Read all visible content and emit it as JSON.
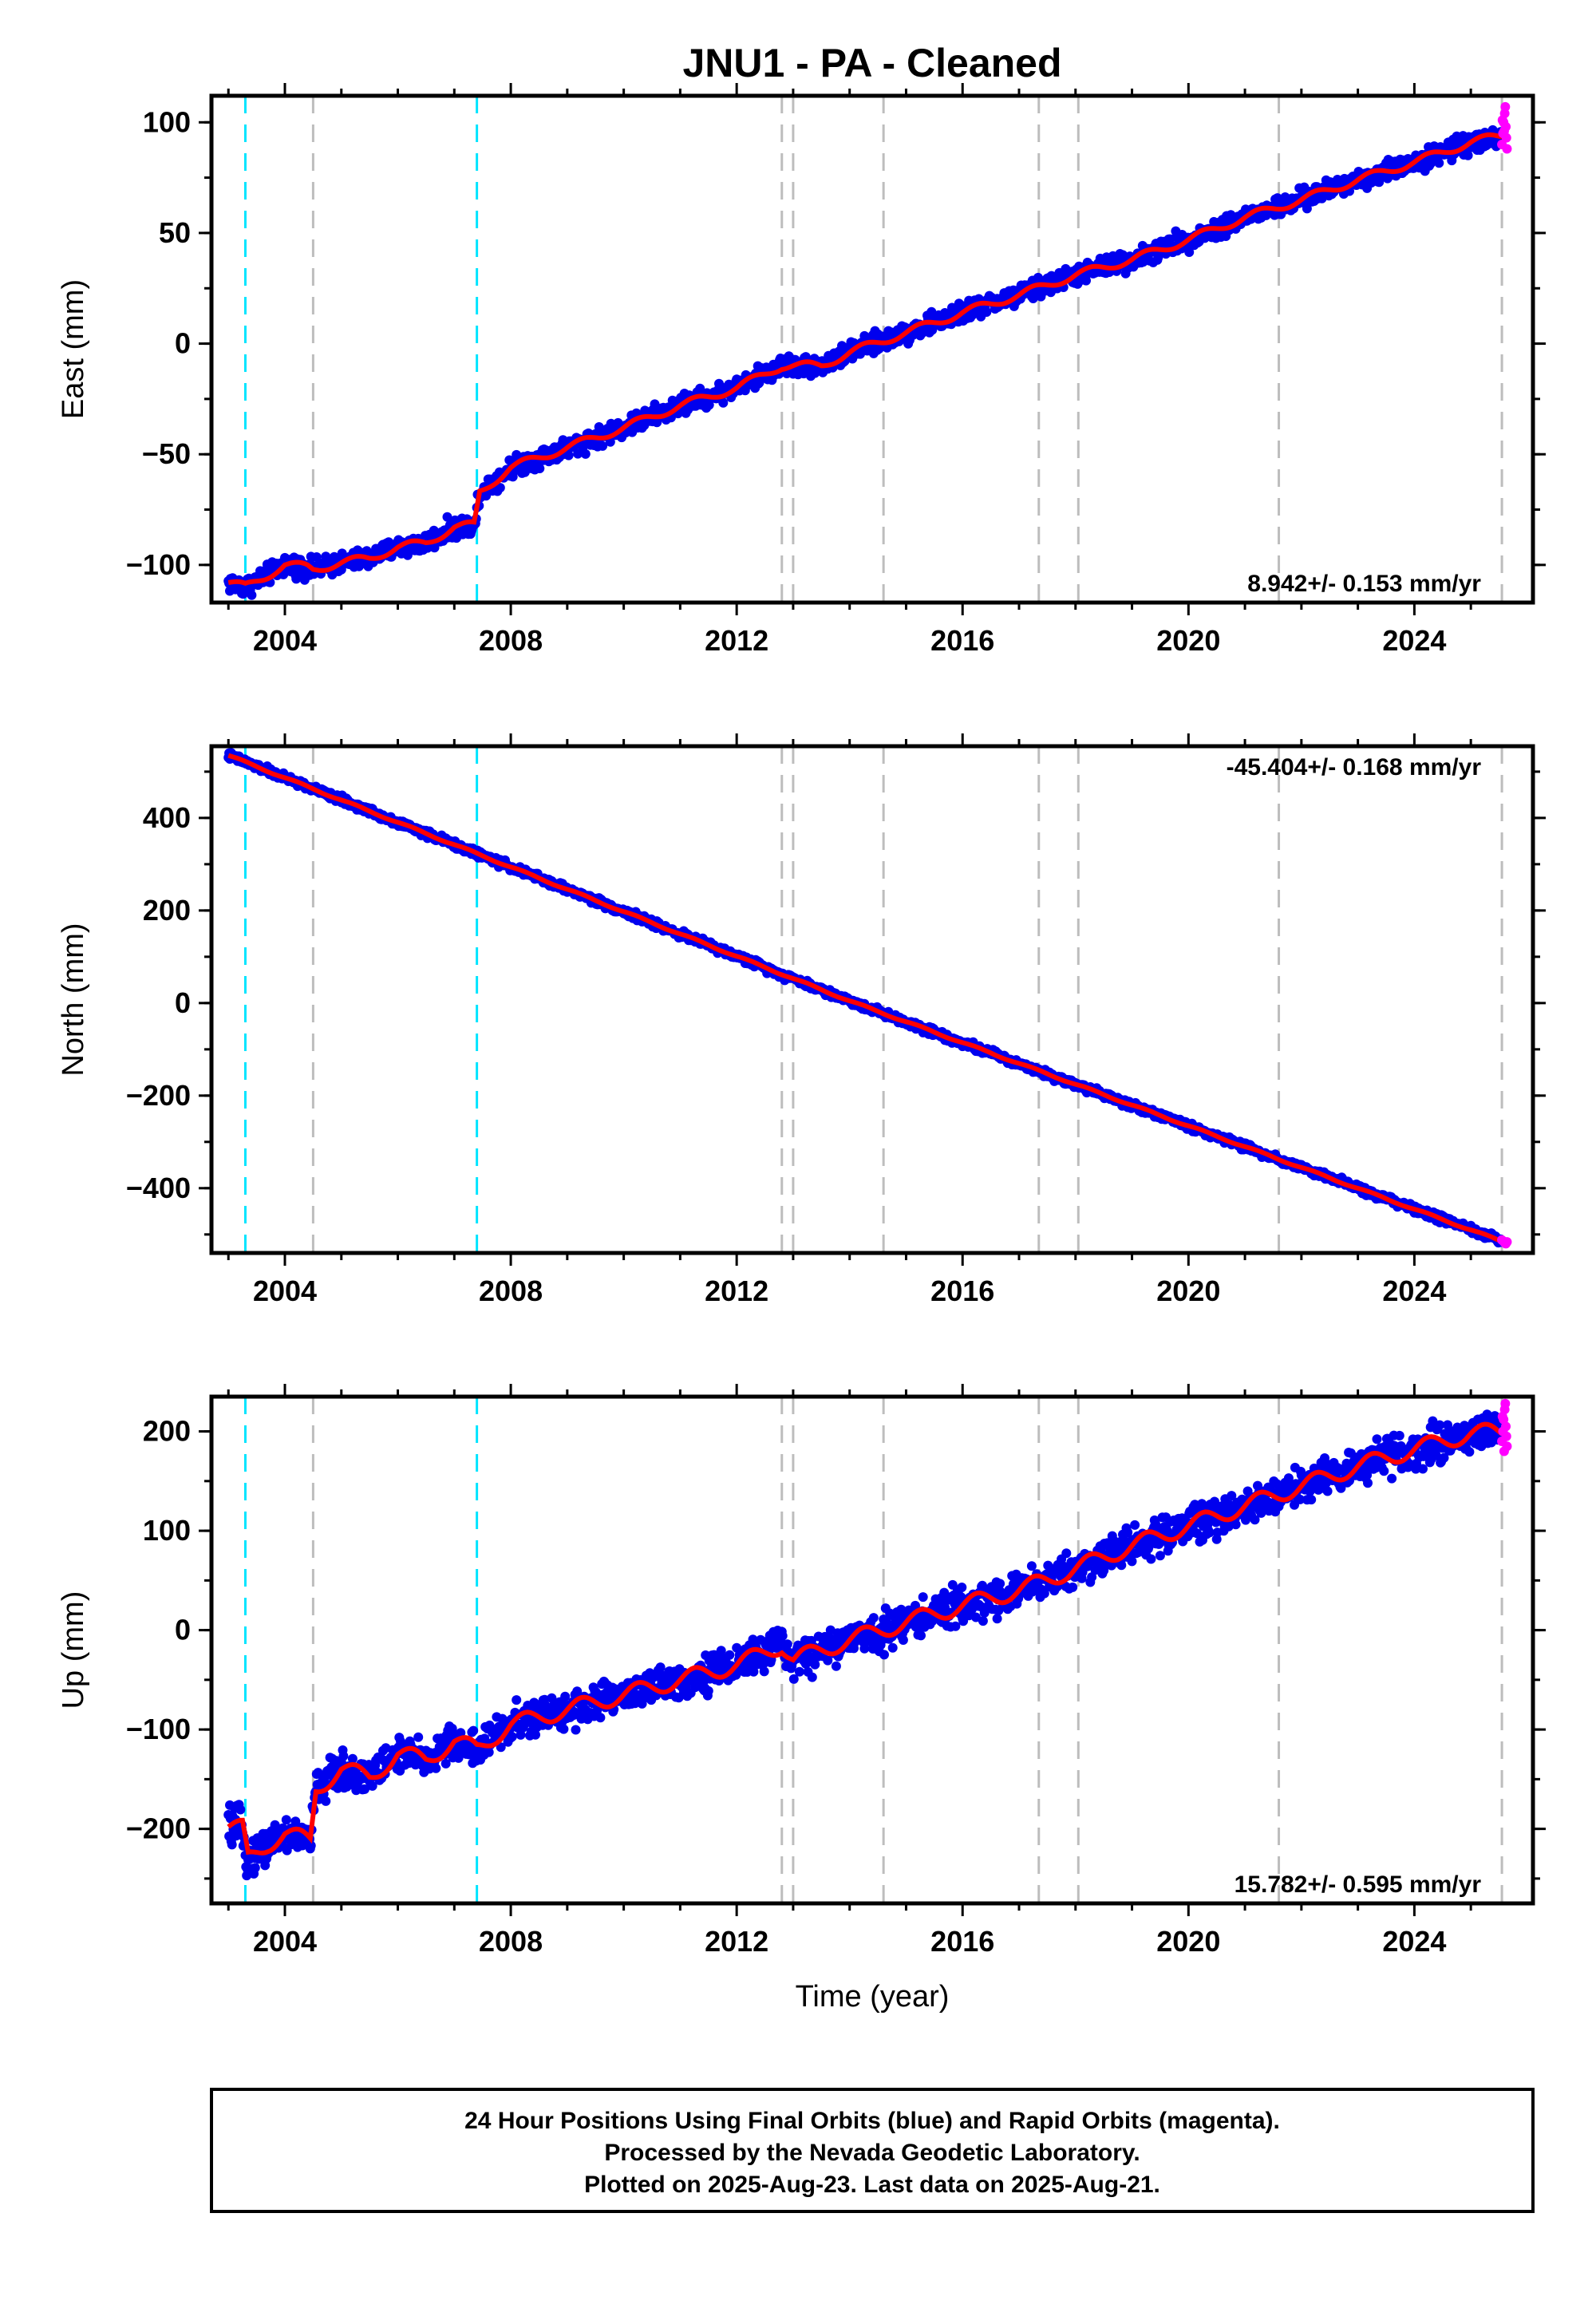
{
  "title": "JNU1  - PA - Cleaned",
  "colors": {
    "final_orbits": "#0000ee",
    "rapid_orbits": "#ff00ff",
    "model": "#ff0000",
    "equipment_change": "#00e5ff",
    "event": "#bdbdbd",
    "axes": "#000000"
  },
  "chart_data": [
    {
      "type": "scatter",
      "component": "East",
      "ylabel": "East (mm)",
      "xlim": [
        2002.7,
        2026.1
      ],
      "ylim": [
        -117,
        112
      ],
      "yticks": [
        -100,
        -50,
        0,
        50,
        100
      ],
      "yticklabels": [
        "−100",
        "−50",
        "0",
        "50",
        "100"
      ],
      "xticks": [
        2004,
        2008,
        2012,
        2016,
        2020,
        2024
      ],
      "xticklabels": [
        "2004",
        "2008",
        "2012",
        "2016",
        "2020",
        "2024"
      ],
      "rate": "8.942+/- 0.153 mm/yr",
      "rate_position": "bottom-right",
      "trend": {
        "rate": 8.942,
        "annual_amplitude": 3,
        "noise": 2.2,
        "steps": [
          {
            "t": 2007.4,
            "dy": 12
          }
        ]
      },
      "model_points": [
        [
          2003.0,
          -108
        ],
        [
          2003.3,
          -110
        ],
        [
          2003.6,
          -106
        ],
        [
          2004.0,
          -100
        ],
        [
          2004.4,
          -101
        ],
        [
          2004.5,
          -102
        ],
        [
          2005.0,
          -99
        ],
        [
          2005.5,
          -97
        ],
        [
          2006.0,
          -92
        ],
        [
          2006.5,
          -90
        ],
        [
          2007.0,
          -83
        ],
        [
          2007.39,
          -82
        ],
        [
          2007.41,
          -68
        ],
        [
          2008.0,
          -56
        ],
        [
          2009.0,
          -47
        ],
        [
          2010.0,
          -38
        ],
        [
          2011.0,
          -28
        ],
        [
          2012.0,
          -20
        ],
        [
          2012.8,
          -10
        ],
        [
          2013.5,
          -10
        ],
        [
          2014.0,
          -4
        ],
        [
          2015.0,
          5
        ],
        [
          2016.0,
          14
        ],
        [
          2017.0,
          22
        ],
        [
          2018.0,
          31
        ],
        [
          2019.0,
          38
        ],
        [
          2020.0,
          47
        ],
        [
          2021.0,
          57
        ],
        [
          2022.0,
          65
        ],
        [
          2023.0,
          74
        ],
        [
          2024.0,
          82
        ],
        [
          2025.0,
          91
        ],
        [
          2025.55,
          94
        ]
      ],
      "rapid_points": [
        [
          2025.55,
          90
        ],
        [
          2025.57,
          95
        ],
        [
          2025.58,
          100
        ],
        [
          2025.6,
          104
        ],
        [
          2025.61,
          107
        ],
        [
          2025.62,
          98
        ],
        [
          2025.63,
          93
        ],
        [
          2025.64,
          88
        ],
        [
          2025.56,
          101
        ],
        [
          2025.59,
          96
        ]
      ]
    },
    {
      "type": "scatter",
      "component": "North",
      "ylabel": "North (mm)",
      "xlim": [
        2002.7,
        2026.1
      ],
      "ylim": [
        -540,
        555
      ],
      "yticks": [
        -400,
        -200,
        0,
        200,
        400
      ],
      "yticklabels": [
        "−400",
        "−200",
        "0",
        "200",
        "400"
      ],
      "xticks": [
        2004,
        2008,
        2012,
        2016,
        2020,
        2024
      ],
      "xticklabels": [
        "2004",
        "2008",
        "2012",
        "2016",
        "2020",
        "2024"
      ],
      "rate": "-45.404+/- 0.168 mm/yr",
      "rate_position": "top-right",
      "trend": {
        "rate": -45.404,
        "annual_amplitude": 3,
        "noise": 4,
        "steps": []
      },
      "model_points": [
        [
          2003.0,
          535
        ],
        [
          2014.1,
          0
        ],
        [
          2025.55,
          -515
        ]
      ],
      "rapid_points": [
        [
          2025.55,
          -512
        ],
        [
          2025.58,
          -515
        ],
        [
          2025.6,
          -518
        ],
        [
          2025.62,
          -520
        ],
        [
          2025.64,
          -516
        ]
      ]
    },
    {
      "type": "scatter",
      "component": "Up",
      "ylabel": "Up (mm)",
      "xlim": [
        2002.7,
        2026.1
      ],
      "ylim": [
        -275,
        235
      ],
      "yticks": [
        -200,
        -100,
        0,
        100,
        200
      ],
      "yticklabels": [
        "−200",
        "−100",
        "0",
        "100",
        "200"
      ],
      "xticks": [
        2004,
        2008,
        2012,
        2016,
        2020,
        2024
      ],
      "xticklabels": [
        "2004",
        "2008",
        "2012",
        "2016",
        "2020",
        "2024"
      ],
      "xlabel": "Time (year)",
      "rate": "15.782+/- 0.595 mm/yr",
      "rate_position": "bottom-right",
      "trend": {
        "rate": 15.782,
        "annual_amplitude": 14,
        "noise": 9,
        "steps": [
          {
            "t": 2003.3,
            "dy": -35
          },
          {
            "t": 2004.5,
            "dy": 55
          }
        ]
      },
      "model_points": [
        [
          2003.0,
          -198
        ],
        [
          2003.29,
          -200
        ],
        [
          2003.31,
          -232
        ],
        [
          2003.7,
          -215
        ],
        [
          2004.0,
          -205
        ],
        [
          2004.45,
          -212
        ],
        [
          2004.55,
          -160
        ],
        [
          2005.0,
          -140
        ],
        [
          2005.5,
          -148
        ],
        [
          2006.0,
          -125
        ],
        [
          2006.5,
          -130
        ],
        [
          2007.0,
          -112
        ],
        [
          2007.4,
          -120
        ],
        [
          2008.0,
          -95
        ],
        [
          2009.0,
          -80
        ],
        [
          2010.0,
          -65
        ],
        [
          2011.0,
          -50
        ],
        [
          2012.0,
          -35
        ],
        [
          2012.8,
          -15
        ],
        [
          2013.0,
          -30
        ],
        [
          2014.0,
          -10
        ],
        [
          2015.0,
          8
        ],
        [
          2016.0,
          25
        ],
        [
          2017.0,
          40
        ],
        [
          2018.0,
          62
        ],
        [
          2019.0,
          85
        ],
        [
          2020.0,
          105
        ],
        [
          2021.0,
          125
        ],
        [
          2022.0,
          145
        ],
        [
          2023.0,
          165
        ],
        [
          2024.0,
          182
        ],
        [
          2025.0,
          198
        ],
        [
          2025.55,
          200
        ]
      ],
      "rapid_points": [
        [
          2025.55,
          190
        ],
        [
          2025.57,
          200
        ],
        [
          2025.58,
          212
        ],
        [
          2025.6,
          222
        ],
        [
          2025.61,
          228
        ],
        [
          2025.62,
          205
        ],
        [
          2025.63,
          195
        ],
        [
          2025.64,
          185
        ],
        [
          2025.56,
          215
        ],
        [
          2025.59,
          180
        ]
      ]
    }
  ],
  "event_lines": {
    "equipment_change_years": [
      2003.3,
      2007.4
    ],
    "event_years": [
      2004.5,
      2012.8,
      2013.0,
      2014.6,
      2017.35,
      2018.05,
      2021.6,
      2025.55
    ]
  },
  "footer": {
    "line1": "24 Hour Positions Using Final Orbits (blue) and Rapid Orbits (magenta).",
    "line2": "Processed by the Nevada Geodetic Laboratory.",
    "line3": "Plotted on 2025-Aug-23. Last data on 2025-Aug-21."
  }
}
